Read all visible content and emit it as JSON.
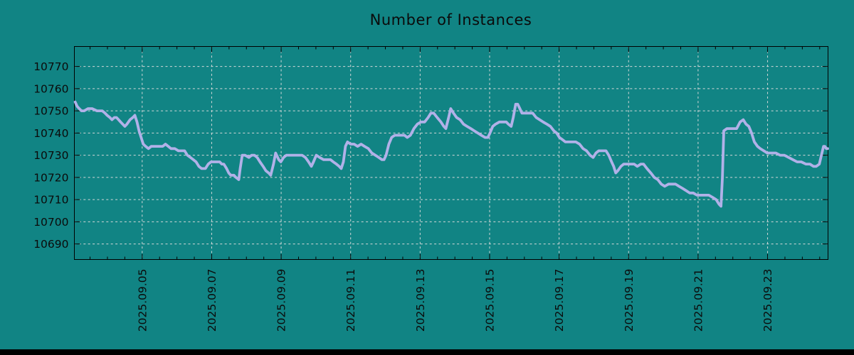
{
  "title": "Number of Instances",
  "colors": {
    "background": "#118484",
    "line": "#b1b1e8",
    "grid": "#d4d8d8",
    "axis": "#000000",
    "text": "#0b0b0b",
    "footer_bar": "#000000"
  },
  "chart_data": {
    "type": "line",
    "title": "Number of Instances",
    "xlabel": "",
    "ylabel": "",
    "legend": "none",
    "grid": true,
    "x_unit": "days since 2025-09-03 00:00",
    "x_range_days": [
      0.048,
      21.74
    ],
    "x_major_tick_days": [
      2,
      4,
      6,
      8,
      10,
      12,
      14,
      16,
      18,
      20
    ],
    "x_tick_labels": [
      "2025.09.05",
      "2025.09.07",
      "2025.09.09",
      "2025.09.11",
      "2025.09.13",
      "2025.09.15",
      "2025.09.17",
      "2025.09.19",
      "2025.09.21",
      "2025.09.23"
    ],
    "x_minor_tick_step_days": 0.5,
    "ylim": [
      10683,
      10779
    ],
    "y_ticks": [
      10690,
      10700,
      10710,
      10720,
      10730,
      10740,
      10750,
      10760,
      10770
    ],
    "series": [
      {
        "name": "instances",
        "points": [
          [
            0.07,
            10754
          ],
          [
            0.13,
            10752
          ],
          [
            0.19,
            10751
          ],
          [
            0.25,
            10750
          ],
          [
            0.33,
            10750
          ],
          [
            0.44,
            10751
          ],
          [
            0.56,
            10751
          ],
          [
            0.7,
            10750
          ],
          [
            0.85,
            10750
          ],
          [
            0.93,
            10749
          ],
          [
            0.99,
            10748
          ],
          [
            1.07,
            10747
          ],
          [
            1.13,
            10746
          ],
          [
            1.2,
            10747
          ],
          [
            1.26,
            10747
          ],
          [
            1.32,
            10746
          ],
          [
            1.38,
            10745
          ],
          [
            1.44,
            10744
          ],
          [
            1.5,
            10743
          ],
          [
            1.56,
            10744
          ],
          [
            1.65,
            10746
          ],
          [
            1.73,
            10747
          ],
          [
            1.79,
            10748
          ],
          [
            1.85,
            10745
          ],
          [
            1.91,
            10741
          ],
          [
            1.97,
            10738
          ],
          [
            2.03,
            10735
          ],
          [
            2.1,
            10734
          ],
          [
            2.18,
            10733
          ],
          [
            2.26,
            10734
          ],
          [
            2.34,
            10734
          ],
          [
            2.42,
            10734
          ],
          [
            2.51,
            10734
          ],
          [
            2.59,
            10734
          ],
          [
            2.67,
            10735
          ],
          [
            2.75,
            10734
          ],
          [
            2.83,
            10733
          ],
          [
            2.94,
            10733
          ],
          [
            3.04,
            10732
          ],
          [
            3.14,
            10732
          ],
          [
            3.22,
            10732
          ],
          [
            3.3,
            10730
          ],
          [
            3.39,
            10729
          ],
          [
            3.47,
            10728
          ],
          [
            3.55,
            10727
          ],
          [
            3.63,
            10725
          ],
          [
            3.71,
            10724
          ],
          [
            3.82,
            10724
          ],
          [
            3.9,
            10726
          ],
          [
            3.98,
            10727
          ],
          [
            4.06,
            10727
          ],
          [
            4.14,
            10727
          ],
          [
            4.23,
            10727
          ],
          [
            4.29,
            10726
          ],
          [
            4.35,
            10726
          ],
          [
            4.43,
            10724
          ],
          [
            4.49,
            10722
          ],
          [
            4.55,
            10721
          ],
          [
            4.64,
            10721
          ],
          [
            4.7,
            10720
          ],
          [
            4.78,
            10719
          ],
          [
            4.82,
            10724
          ],
          [
            4.88,
            10730
          ],
          [
            4.96,
            10730
          ],
          [
            5.07,
            10729
          ],
          [
            5.15,
            10730
          ],
          [
            5.23,
            10730
          ],
          [
            5.31,
            10729
          ],
          [
            5.39,
            10727
          ],
          [
            5.48,
            10725
          ],
          [
            5.56,
            10723
          ],
          [
            5.64,
            10722
          ],
          [
            5.7,
            10721
          ],
          [
            5.78,
            10726
          ],
          [
            5.84,
            10731
          ],
          [
            5.93,
            10728
          ],
          [
            5.99,
            10727
          ],
          [
            6.07,
            10729
          ],
          [
            6.15,
            10730
          ],
          [
            6.25,
            10730
          ],
          [
            6.38,
            10730
          ],
          [
            6.5,
            10730
          ],
          [
            6.6,
            10730
          ],
          [
            6.7,
            10729
          ],
          [
            6.79,
            10727
          ],
          [
            6.87,
            10725
          ],
          [
            6.93,
            10727
          ],
          [
            7.01,
            10730
          ],
          [
            7.11,
            10729
          ],
          [
            7.22,
            10728
          ],
          [
            7.32,
            10728
          ],
          [
            7.42,
            10728
          ],
          [
            7.5,
            10727
          ],
          [
            7.59,
            10726
          ],
          [
            7.67,
            10725
          ],
          [
            7.73,
            10724
          ],
          [
            7.79,
            10727
          ],
          [
            7.85,
            10734
          ],
          [
            7.91,
            10736
          ],
          [
            8.0,
            10735
          ],
          [
            8.1,
            10735
          ],
          [
            8.2,
            10734
          ],
          [
            8.3,
            10735
          ],
          [
            8.4,
            10734
          ],
          [
            8.51,
            10733
          ],
          [
            8.61,
            10731
          ],
          [
            8.71,
            10730
          ],
          [
            8.81,
            10729
          ],
          [
            8.9,
            10728
          ],
          [
            8.96,
            10728
          ],
          [
            9.02,
            10730
          ],
          [
            9.1,
            10735
          ],
          [
            9.18,
            10738
          ],
          [
            9.27,
            10739
          ],
          [
            9.37,
            10739
          ],
          [
            9.47,
            10739
          ],
          [
            9.55,
            10739
          ],
          [
            9.63,
            10738
          ],
          [
            9.72,
            10739
          ],
          [
            9.82,
            10742
          ],
          [
            9.92,
            10744
          ],
          [
            10.02,
            10745
          ],
          [
            10.13,
            10745
          ],
          [
            10.23,
            10747
          ],
          [
            10.31,
            10749
          ],
          [
            10.39,
            10749
          ],
          [
            10.49,
            10747
          ],
          [
            10.6,
            10745
          ],
          [
            10.68,
            10743
          ],
          [
            10.74,
            10742
          ],
          [
            10.82,
            10747
          ],
          [
            10.88,
            10751
          ],
          [
            10.96,
            10749
          ],
          [
            11.05,
            10747
          ],
          [
            11.15,
            10746
          ],
          [
            11.25,
            10744
          ],
          [
            11.35,
            10743
          ],
          [
            11.46,
            10742
          ],
          [
            11.56,
            10741
          ],
          [
            11.66,
            10740
          ],
          [
            11.76,
            10739
          ],
          [
            11.87,
            10738
          ],
          [
            11.95,
            10738
          ],
          [
            12.01,
            10740
          ],
          [
            12.09,
            10743
          ],
          [
            12.17,
            10744
          ],
          [
            12.28,
            10745
          ],
          [
            12.38,
            10745
          ],
          [
            12.48,
            10745
          ],
          [
            12.54,
            10744
          ],
          [
            12.62,
            10743
          ],
          [
            12.68,
            10747
          ],
          [
            12.75,
            10753
          ],
          [
            12.81,
            10753
          ],
          [
            12.87,
            10751
          ],
          [
            12.93,
            10749
          ],
          [
            13.03,
            10749
          ],
          [
            13.13,
            10749
          ],
          [
            13.24,
            10749
          ],
          [
            13.34,
            10747
          ],
          [
            13.44,
            10746
          ],
          [
            13.54,
            10745
          ],
          [
            13.65,
            10744
          ],
          [
            13.75,
            10743
          ],
          [
            13.85,
            10741
          ],
          [
            13.93,
            10740
          ],
          [
            14.01,
            10738
          ],
          [
            14.1,
            10737
          ],
          [
            14.18,
            10736
          ],
          [
            14.28,
            10736
          ],
          [
            14.38,
            10736
          ],
          [
            14.48,
            10736
          ],
          [
            14.59,
            10735
          ],
          [
            14.69,
            10733
          ],
          [
            14.79,
            10732
          ],
          [
            14.89,
            10730
          ],
          [
            14.98,
            10729
          ],
          [
            15.06,
            10731
          ],
          [
            15.14,
            10732
          ],
          [
            15.24,
            10732
          ],
          [
            15.35,
            10732
          ],
          [
            15.43,
            10730
          ],
          [
            15.51,
            10727
          ],
          [
            15.57,
            10725
          ],
          [
            15.63,
            10722
          ],
          [
            15.69,
            10723
          ],
          [
            15.78,
            10725
          ],
          [
            15.86,
            10726
          ],
          [
            15.96,
            10726
          ],
          [
            16.06,
            10726
          ],
          [
            16.16,
            10726
          ],
          [
            16.25,
            10725
          ],
          [
            16.35,
            10726
          ],
          [
            16.43,
            10726
          ],
          [
            16.53,
            10724
          ],
          [
            16.64,
            10722
          ],
          [
            16.74,
            10720
          ],
          [
            16.84,
            10719
          ],
          [
            16.94,
            10717
          ],
          [
            17.04,
            10716
          ],
          [
            17.15,
            10717
          ],
          [
            17.25,
            10717
          ],
          [
            17.35,
            10717
          ],
          [
            17.45,
            10716
          ],
          [
            17.56,
            10715
          ],
          [
            17.66,
            10714
          ],
          [
            17.76,
            10713
          ],
          [
            17.86,
            10713
          ],
          [
            17.97,
            10712
          ],
          [
            18.07,
            10712
          ],
          [
            18.19,
            10712
          ],
          [
            18.31,
            10712
          ],
          [
            18.42,
            10711
          ],
          [
            18.52,
            10710
          ],
          [
            18.6,
            10708
          ],
          [
            18.66,
            10707
          ],
          [
            18.7,
            10720
          ],
          [
            18.74,
            10741
          ],
          [
            18.83,
            10742
          ],
          [
            18.97,
            10742
          ],
          [
            19.11,
            10742
          ],
          [
            19.21,
            10745
          ],
          [
            19.3,
            10746
          ],
          [
            19.38,
            10744
          ],
          [
            19.46,
            10743
          ],
          [
            19.54,
            10740
          ],
          [
            19.62,
            10736
          ],
          [
            19.71,
            10734
          ],
          [
            19.79,
            10733
          ],
          [
            19.89,
            10732
          ],
          [
            19.99,
            10731
          ],
          [
            20.12,
            10731
          ],
          [
            20.24,
            10731
          ],
          [
            20.36,
            10730
          ],
          [
            20.48,
            10730
          ],
          [
            20.61,
            10729
          ],
          [
            20.73,
            10728
          ],
          [
            20.85,
            10727
          ],
          [
            20.97,
            10727
          ],
          [
            21.1,
            10726
          ],
          [
            21.22,
            10726
          ],
          [
            21.32,
            10725
          ],
          [
            21.4,
            10725
          ],
          [
            21.49,
            10726
          ],
          [
            21.55,
            10730
          ],
          [
            21.61,
            10734
          ],
          [
            21.65,
            10734
          ],
          [
            21.69,
            10733
          ],
          [
            21.73,
            10733
          ]
        ]
      }
    ]
  }
}
